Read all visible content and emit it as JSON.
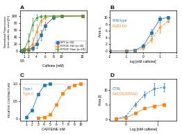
{
  "chart_data": [
    {
      "type": "line",
      "title": "A",
      "xlabel": "Caffeine (mM)",
      "ylabel": "Normalized Fluorescence\n(area under the curve)[%]",
      "series": [
        {
          "name": "WT (n=32)",
          "marker": "square",
          "line_style": "solid",
          "x": [
            0.5,
            1,
            2,
            3,
            4,
            5,
            6,
            8,
            10,
            15
          ],
          "values": [
            2,
            3,
            4,
            8,
            20,
            45,
            72,
            95,
            99,
            100
          ],
          "yerr": [
            2,
            3,
            5,
            8,
            12,
            15,
            12,
            5,
            3,
            2
          ]
        },
        {
          "name": "R763C Het (n=32)",
          "marker": "open circle",
          "line_style": "solid",
          "x": [
            0.5,
            1,
            2,
            3,
            4,
            5,
            6,
            8,
            10,
            15
          ],
          "values": [
            2,
            3,
            6,
            20,
            55,
            85,
            96,
            100,
            100,
            100
          ],
          "yerr": [
            2,
            4,
            8,
            18,
            20,
            12,
            6,
            3,
            2,
            2
          ]
        },
        {
          "name": "R763C Hom (n=10)",
          "marker": "open triangle",
          "line_style": "solid",
          "x": [
            0.5,
            1,
            2,
            3,
            4,
            5,
            6,
            8,
            10,
            15
          ],
          "values": [
            2,
            4,
            30,
            75,
            95,
            99,
            100,
            100,
            100,
            100
          ],
          "yerr": [
            2,
            6,
            20,
            18,
            8,
            4,
            3,
            2,
            2,
            2
          ]
        }
      ],
      "xlim": [
        0,
        16
      ],
      "ylim": [
        -5,
        115
      ],
      "xticks": [
        0.5,
        1,
        2,
        4,
        6,
        8,
        10,
        15
      ],
      "yticks": [
        0,
        20,
        40,
        60,
        80,
        100
      ],
      "legend": "lower right"
    },
    {
      "type": "line",
      "title": "B",
      "xlabel": "log [mM caffeine]",
      "ylabel": "Area u.",
      "series": [
        {
          "marker": "square",
          "line_style": "solid",
          "x": [
            -2,
            -1,
            -0.5,
            0,
            0.5,
            1.0,
            1.5
          ],
          "values": [
            0,
            0,
            0.2,
            1.5,
            5.5,
            9.5,
            10.0
          ],
          "yerr": [
            0,
            0,
            0.2,
            0.5,
            1.0,
            1.0,
            0.4
          ]
        },
        {
          "marker": "open circle",
          "line_style": "dashed",
          "x": [
            -2,
            -1,
            -0.5,
            0,
            0.5,
            1.0,
            1.5
          ],
          "values": [
            0,
            0,
            0.1,
            0.8,
            3.5,
            7.0,
            9.0
          ],
          "yerr": [
            0,
            0,
            0.1,
            0.4,
            0.8,
            1.5,
            0.5
          ]
        }
      ],
      "annotations": [
        "Wild type",
        "RyR3 KO"
      ],
      "xlim": [
        -2,
        2
      ],
      "ylim": [
        -0.5,
        12
      ],
      "xticks": [
        -2,
        -1,
        0,
        1,
        2
      ],
      "yticks": [
        0,
        2,
        4,
        6,
        8,
        10
      ]
    },
    {
      "type": "line",
      "title": "C",
      "xlabel": "CAFFEINE mM",
      "ylabel": "RELATIVE CONTRACTURE",
      "series": [
        {
          "marker": "square",
          "line_style": "solid",
          "x": [
            1,
            2,
            3,
            4,
            5
          ],
          "values": [
            0.05,
            0.25,
            0.7,
            0.96,
            1.0
          ]
        },
        {
          "marker": "square",
          "line_style": "solid",
          "x": [
            3,
            4,
            5,
            6,
            7,
            8,
            9,
            10
          ],
          "values": [
            0.02,
            0.05,
            0.12,
            0.4,
            0.72,
            0.91,
            0.97,
            1.0
          ]
        }
      ],
      "annotations": [
        "Type I",
        "Type II"
      ],
      "reference_line": 1,
      "xlim": [
        0,
        11
      ],
      "ylim": [
        -0.05,
        1.15
      ],
      "xticks": [
        1,
        2,
        3,
        4,
        5,
        6,
        7,
        8,
        9,
        10
      ],
      "yticks": [
        0,
        0.5,
        {
          "value": 1,
          "label": "1.0"
        }
      ]
    },
    {
      "type": "line",
      "title": "D",
      "xlabel": "Log [mM caffeine]",
      "ylabel": "Area [i]",
      "series": [
        {
          "marker": "open circle",
          "line_style": "dashed",
          "x": [
            -0.3,
            0,
            0.3,
            0.6,
            0.9,
            1.2
          ],
          "values": [
            0.1,
            1.0,
            5.0,
            8.5,
            10.5,
            11.0
          ],
          "yerr": [
            0.1,
            0.3,
            0.8,
            1.2,
            2.0,
            1.5
          ]
        },
        {
          "marker": "square",
          "line_style": "solid",
          "x": [
            -0.3,
            0,
            0.3,
            0.6,
            0.9,
            1.2
          ],
          "values": [
            0.1,
            0.5,
            2.0,
            3.8,
            4.5,
            5.0
          ],
          "yerr": [
            0.1,
            0.2,
            0.4,
            0.5,
            0.6,
            0.5
          ]
        }
      ],
      "annotations": [
        "CTRL",
        "CaS(Gly103Asp)"
      ],
      "xlim": [
        -0.5,
        1.6
      ],
      "ylim": [
        -0.5,
        14
      ],
      "xticks": [
        0,
        1
      ],
      "yticks": [
        0,
        5,
        10
      ]
    }
  ]
}
